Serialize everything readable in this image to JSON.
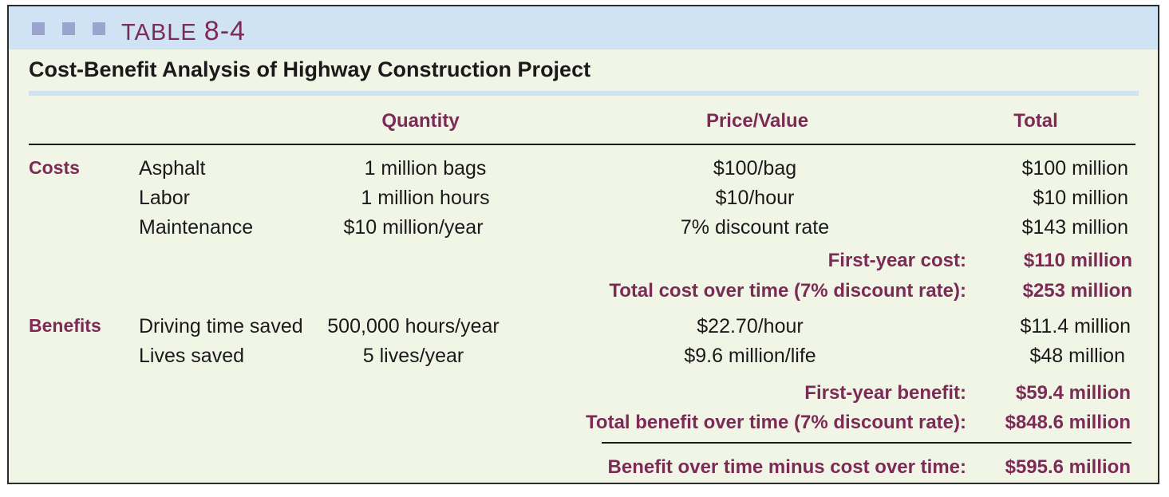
{
  "table": {
    "label": "TABLE",
    "number": "8-4",
    "title": "Cost-Benefit Analysis of Highway Construction Project"
  },
  "columns": {
    "quantity": "Quantity",
    "price": "Price/Value",
    "total": "Total"
  },
  "costs": {
    "category": "Costs",
    "rows": [
      {
        "item": "Asphalt",
        "quantity": "1 million bags",
        "price": "$100/bag",
        "total": "$100 million"
      },
      {
        "item": "Labor",
        "quantity": "1 million hours",
        "price": "$10/hour",
        "total": "$10 million"
      },
      {
        "item": "Maintenance",
        "quantity": "$10 million/year",
        "price": "7% discount rate",
        "total": "$143 million"
      }
    ],
    "first_year_label": "First-year cost:",
    "first_year_value": "$110 million",
    "over_time_label": "Total cost over time (7% discount rate):",
    "over_time_value": "$253 million"
  },
  "benefits": {
    "category": "Benefits",
    "rows": [
      {
        "item": "Driving time saved",
        "quantity": "500,000 hours/year",
        "price": "$22.70/hour",
        "total": "$11.4 million"
      },
      {
        "item": "Lives saved",
        "quantity": "5 lives/year",
        "price": "$9.6 million/life",
        "total": "$48 million"
      }
    ],
    "first_year_label": "First-year benefit:",
    "first_year_value": "$59.4 million",
    "over_time_label": "Total benefit over time (7% discount rate):",
    "over_time_value": "$848.6 million"
  },
  "net": {
    "label": "Benefit over time minus cost over time:",
    "value": "$595.6 million"
  },
  "colors": {
    "accent": "#7c2b56",
    "header_band": "#cfe3f4",
    "panel": "#f1f5e6",
    "squares": "#9aa4cc"
  }
}
